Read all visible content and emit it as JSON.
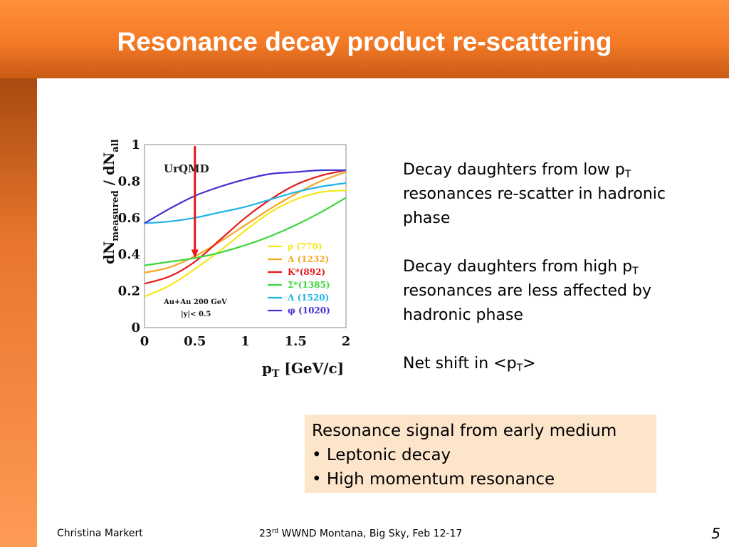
{
  "slide": {
    "title": "Resonance decay product re-scattering",
    "bullets": {
      "b1": {
        "pre": "Decay daughters from low p",
        "sub": "T",
        "post": " resonances re-scatter in hadronic phase"
      },
      "b2": {
        "pre": "Decay daughters from high p",
        "sub": "T",
        "post": " resonances are less affected by hadronic phase"
      },
      "b3": {
        "pre": "Net shift in <p",
        "sub": "T",
        "post": ">"
      }
    },
    "box": {
      "line1": "Resonance signal from early medium",
      "line2": "• Leptonic decay",
      "line3": "• High momentum resonance"
    },
    "footer": {
      "author": "Christina Markert",
      "conf_pre": "23",
      "conf_sup": "rd",
      "conf_post": " WWND Montana, Big Sky, Feb  12-17",
      "page": "5"
    }
  },
  "chart_data": {
    "type": "line",
    "ylabel": {
      "main": "dN",
      "sub1": "measured",
      "mid": " / dN",
      "sub2": "all"
    },
    "xlabel": {
      "main": "p",
      "sub": "T",
      "unit": " [GeV/c]"
    },
    "model_label": "UrQMD",
    "conditions": [
      "Au+Au 200 GeV",
      "|y|< 0.5"
    ],
    "xlim": [
      0,
      2
    ],
    "ylim": [
      0,
      1
    ],
    "x_ticks": [
      "0",
      "0.5",
      "1",
      "1.5",
      "2"
    ],
    "y_ticks": [
      "0",
      "0.2",
      "0.4",
      "0.6",
      "0.8",
      "1"
    ],
    "marker_x": 0.5,
    "marker_color": "#e81818",
    "x": [
      0,
      0.25,
      0.5,
      0.75,
      1.0,
      1.25,
      1.5,
      1.75,
      2.0
    ],
    "series": [
      {
        "name": "ρ (770)",
        "color": "#f4e81a",
        "values": [
          0.17,
          0.23,
          0.32,
          0.42,
          0.53,
          0.63,
          0.7,
          0.74,
          0.75
        ]
      },
      {
        "name": "Δ (1232)",
        "color": "#f5a623",
        "values": [
          0.3,
          0.33,
          0.39,
          0.47,
          0.56,
          0.65,
          0.73,
          0.8,
          0.85
        ]
      },
      {
        "name": "K*(892)",
        "color": "#e81818",
        "values": [
          0.24,
          0.28,
          0.36,
          0.48,
          0.6,
          0.7,
          0.78,
          0.83,
          0.86
        ]
      },
      {
        "name": "Σ*(1385)",
        "color": "#3cd63c",
        "values": [
          0.34,
          0.36,
          0.38,
          0.41,
          0.45,
          0.5,
          0.56,
          0.63,
          0.71
        ]
      },
      {
        "name": "Λ (1520)",
        "color": "#1eb4ea",
        "values": [
          0.57,
          0.58,
          0.6,
          0.63,
          0.66,
          0.7,
          0.74,
          0.77,
          0.79
        ]
      },
      {
        "name": "φ (1020)",
        "color": "#4030d0",
        "values": [
          0.57,
          0.65,
          0.72,
          0.77,
          0.81,
          0.84,
          0.85,
          0.86,
          0.86
        ]
      }
    ]
  }
}
